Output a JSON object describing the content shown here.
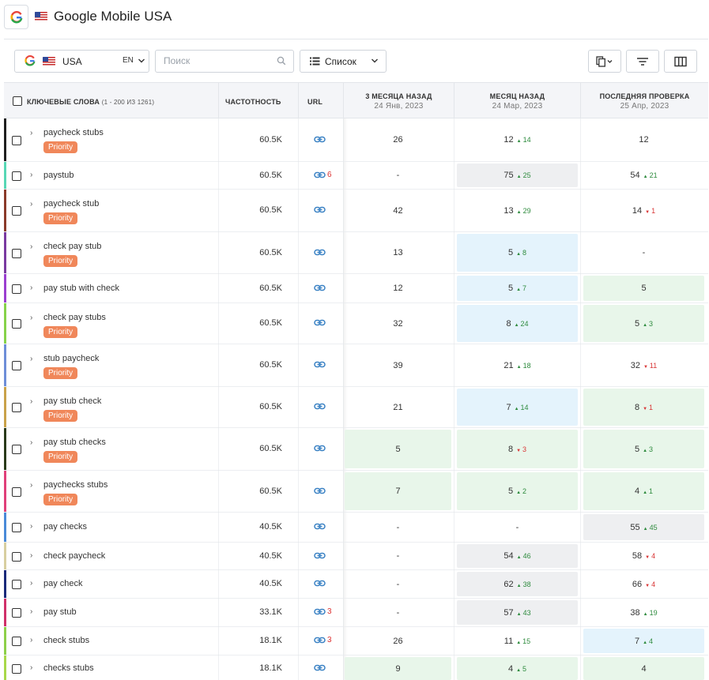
{
  "header": {
    "title": "Google Mobile USA"
  },
  "toolbar": {
    "country": "USA",
    "lang": "EN",
    "search_placeholder": "Поиск",
    "view_label": "Список"
  },
  "columns": {
    "keywords": "КЛЮЧЕВЫЕ СЛОВА",
    "keywords_count": "(1 - 200 ИЗ 1261)",
    "frequency": "ЧАСТОТНОСТЬ",
    "url": "URL",
    "d1": {
      "title": "3 МЕСЯЦА НАЗАД",
      "date": "24 Янв, 2023"
    },
    "d2": {
      "title": "МЕСЯЦ НАЗАД",
      "date": "24 Мар, 2023"
    },
    "d3": {
      "title": "ПОСЛЕДНЯЯ ПРОВЕРКА",
      "date": "25 Апр, 2023"
    }
  },
  "priority_label": "Priority",
  "colors": {
    "up": "#2e8b3e",
    "down": "#d93636",
    "priority": "#f0875a"
  },
  "rows": [
    {
      "kw": "paycheck stubs",
      "prio": true,
      "freq": "60.5K",
      "url_count": "",
      "bar": "#1f1f1f",
      "d1": "26",
      "d1_bg": "",
      "d2": "12",
      "d2_dir": "up",
      "d2_delta": "14",
      "d2_bg": "",
      "d3": "12",
      "d3_dir": "",
      "d3_delta": "",
      "d3_bg": ""
    },
    {
      "kw": "paystub",
      "prio": false,
      "freq": "60.5K",
      "url_count": "6",
      "bar": "#57d7b5",
      "d1": "-",
      "d1_bg": "",
      "d2": "75",
      "d2_dir": "up",
      "d2_delta": "25",
      "d2_bg": "gray",
      "d3": "54",
      "d3_dir": "up",
      "d3_delta": "21",
      "d3_bg": ""
    },
    {
      "kw": "paycheck stub",
      "prio": true,
      "freq": "60.5K",
      "url_count": "",
      "bar": "#8a3a2a",
      "d1": "42",
      "d1_bg": "",
      "d2": "13",
      "d2_dir": "up",
      "d2_delta": "29",
      "d2_bg": "",
      "d3": "14",
      "d3_dir": "down",
      "d3_delta": "1",
      "d3_bg": ""
    },
    {
      "kw": "check pay stub",
      "prio": true,
      "freq": "60.5K",
      "url_count": "",
      "bar": "#7a3aa0",
      "d1": "13",
      "d1_bg": "",
      "d2": "5",
      "d2_dir": "up",
      "d2_delta": "8",
      "d2_bg": "blue",
      "d3": "-",
      "d3_dir": "",
      "d3_delta": "",
      "d3_bg": ""
    },
    {
      "kw": "pay stub with check",
      "prio": false,
      "freq": "60.5K",
      "url_count": "",
      "bar": "#9b3fd0",
      "d1": "12",
      "d1_bg": "",
      "d2": "5",
      "d2_dir": "up",
      "d2_delta": "7",
      "d2_bg": "blue",
      "d3": "5",
      "d3_dir": "",
      "d3_delta": "",
      "d3_bg": "green"
    },
    {
      "kw": "check pay stubs",
      "prio": true,
      "freq": "60.5K",
      "url_count": "",
      "bar": "#86d24a",
      "d1": "32",
      "d1_bg": "",
      "d2": "8",
      "d2_dir": "up",
      "d2_delta": "24",
      "d2_bg": "blue",
      "d3": "5",
      "d3_dir": "up",
      "d3_delta": "3",
      "d3_bg": "green"
    },
    {
      "kw": "stub paycheck",
      "prio": true,
      "freq": "60.5K",
      "url_count": "",
      "bar": "#6e8ed8",
      "d1": "39",
      "d1_bg": "",
      "d2": "21",
      "d2_dir": "up",
      "d2_delta": "18",
      "d2_bg": "",
      "d3": "32",
      "d3_dir": "down",
      "d3_delta": "11",
      "d3_bg": ""
    },
    {
      "kw": "pay stub check",
      "prio": true,
      "freq": "60.5K",
      "url_count": "",
      "bar": "#c9a24a",
      "d1": "21",
      "d1_bg": "",
      "d2": "7",
      "d2_dir": "up",
      "d2_delta": "14",
      "d2_bg": "blue",
      "d3": "8",
      "d3_dir": "down",
      "d3_delta": "1",
      "d3_bg": "green"
    },
    {
      "kw": "pay stub checks",
      "prio": true,
      "freq": "60.5K",
      "url_count": "",
      "bar": "#2a3a1a",
      "d1": "5",
      "d1_bg": "green",
      "d2": "8",
      "d2_dir": "down",
      "d2_delta": "3",
      "d2_bg": "green",
      "d3": "5",
      "d3_dir": "up",
      "d3_delta": "3",
      "d3_bg": "green"
    },
    {
      "kw": "paychecks stubs",
      "prio": true,
      "freq": "60.5K",
      "url_count": "",
      "bar": "#e0407a",
      "d1": "7",
      "d1_bg": "green",
      "d2": "5",
      "d2_dir": "up",
      "d2_delta": "2",
      "d2_bg": "green",
      "d3": "4",
      "d3_dir": "up",
      "d3_delta": "1",
      "d3_bg": "green"
    },
    {
      "kw": "pay checks",
      "prio": false,
      "freq": "40.5K",
      "url_count": "",
      "bar": "#4a8ad8",
      "d1": "-",
      "d1_bg": "",
      "d2": "-",
      "d2_dir": "",
      "d2_delta": "",
      "d2_bg": "",
      "d3": "55",
      "d3_dir": "up",
      "d3_delta": "45",
      "d3_bg": "gray"
    },
    {
      "kw": "check paycheck",
      "prio": false,
      "freq": "40.5K",
      "url_count": "",
      "bar": "#d8cfa0",
      "d1": "-",
      "d1_bg": "",
      "d2": "54",
      "d2_dir": "up",
      "d2_delta": "46",
      "d2_bg": "gray",
      "d3": "58",
      "d3_dir": "down",
      "d3_delta": "4",
      "d3_bg": ""
    },
    {
      "kw": "pay check",
      "prio": false,
      "freq": "40.5K",
      "url_count": "",
      "bar": "#1a2a7a",
      "d1": "-",
      "d1_bg": "",
      "d2": "62",
      "d2_dir": "up",
      "d2_delta": "38",
      "d2_bg": "gray",
      "d3": "66",
      "d3_dir": "down",
      "d3_delta": "4",
      "d3_bg": ""
    },
    {
      "kw": "pay stub",
      "prio": false,
      "freq": "33.1K",
      "url_count": "3",
      "bar": "#d0306a",
      "d1": "-",
      "d1_bg": "",
      "d2": "57",
      "d2_dir": "up",
      "d2_delta": "43",
      "d2_bg": "gray",
      "d3": "38",
      "d3_dir": "up",
      "d3_delta": "19",
      "d3_bg": ""
    },
    {
      "kw": "check stubs",
      "prio": false,
      "freq": "18.1K",
      "url_count": "3",
      "bar": "#8ed04a",
      "d1": "26",
      "d1_bg": "",
      "d2": "11",
      "d2_dir": "up",
      "d2_delta": "15",
      "d2_bg": "",
      "d3": "7",
      "d3_dir": "up",
      "d3_delta": "4",
      "d3_bg": "blue"
    },
    {
      "kw": "checks stubs",
      "prio": false,
      "freq": "18.1K",
      "url_count": "",
      "bar": "#a8d84a",
      "d1": "9",
      "d1_bg": "green",
      "d2": "4",
      "d2_dir": "up",
      "d2_delta": "5",
      "d2_bg": "green",
      "d3": "4",
      "d3_dir": "",
      "d3_delta": "",
      "d3_bg": "green"
    }
  ]
}
